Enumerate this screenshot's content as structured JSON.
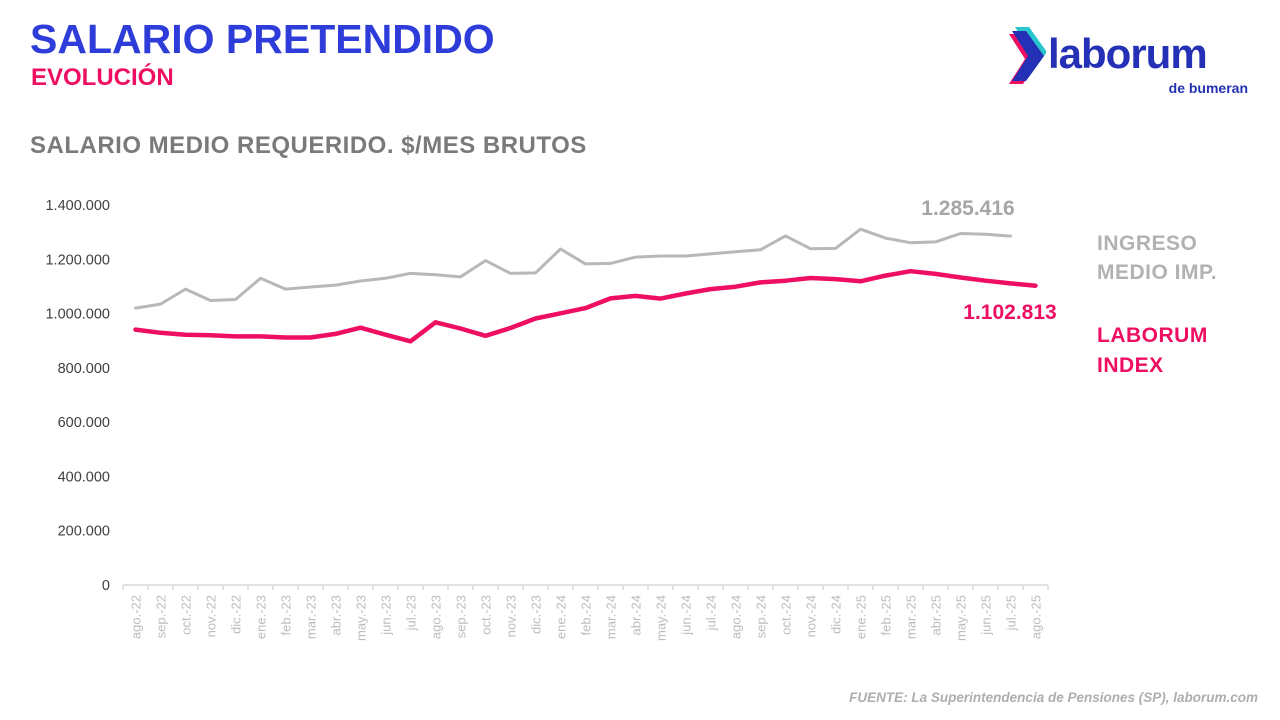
{
  "header": {
    "title": "SALARIO PRETENDIDO",
    "subtitle": "EVOLUCIÓN"
  },
  "logo": {
    "name": "laborum",
    "tagline": "de bumeran"
  },
  "chart": {
    "title": "SALARIO MEDIO REQUERIDO. $/MES BRUTOS"
  },
  "legend": {
    "series1": "INGRESO MEDIO IMP.",
    "series2": "LABORUM INDEX"
  },
  "annotations": {
    "gray_value": "1.285.416",
    "pink_value": "1.102.813"
  },
  "footer": "FUENTE: La Superintendencia de Pensiones (SP), laborum.com",
  "colors": {
    "title_blue": "#2e3cd9",
    "accent_pink": "#ee0f63",
    "line_gray": "#b8b8b8",
    "logo_navy": "#2430b5",
    "logo_teal": "#29c5cd"
  },
  "chart_data": {
    "type": "line",
    "title": "SALARIO MEDIO REQUERIDO. $/MES BRUTOS",
    "xlabel": "",
    "ylabel": "$/mes brutos",
    "ylim": [
      0,
      1400000
    ],
    "grid": false,
    "legend_position": "right",
    "categories": [
      "ago.-22",
      "sep.-22",
      "oct.-22",
      "nov.-22",
      "dic.-22",
      "ene.-23",
      "feb.-23",
      "mar.-23",
      "abr.-23",
      "may.-23",
      "jun.-23",
      "jul.-23",
      "ago.-23",
      "sep.-23",
      "oct.-23",
      "nov.-23",
      "dic.-23",
      "ene.-24",
      "feb.-24",
      "mar.-24",
      "abr.-24",
      "may.-24",
      "jun.-24",
      "jul.-24",
      "ago.-24",
      "sep.-24",
      "oct.-24",
      "nov.-24",
      "dic.-24",
      "ene.-25",
      "feb.-25",
      "mar.-25",
      "abr.-25",
      "may.-25",
      "jun.-25",
      "jul.-25",
      "ago.-25"
    ],
    "yticks": [
      {
        "v": 0,
        "label": "0"
      },
      {
        "v": 200000,
        "label": "200.000"
      },
      {
        "v": 400000,
        "label": "400.000"
      },
      {
        "v": 600000,
        "label": "600.000"
      },
      {
        "v": 800000,
        "label": "800.000"
      },
      {
        "v": 1000000,
        "label": "1.000.000"
      },
      {
        "v": 1200000,
        "label": "1.200.000"
      },
      {
        "v": 1400000,
        "label": "1.400.000"
      }
    ],
    "series": [
      {
        "key": "ingreso-medio-imp",
        "name": "INGRESO MEDIO IMP.",
        "color": "#b8b8b8",
        "width": 3,
        "last_label": "1.285.416",
        "values": [
          1020000,
          1035000,
          1090000,
          1048000,
          1052000,
          1130000,
          1090000,
          1098000,
          1105000,
          1120000,
          1130000,
          1148000,
          1143000,
          1135000,
          1195000,
          1148000,
          1150000,
          1238000,
          1183000,
          1185000,
          1208000,
          1212000,
          1212000,
          1220000,
          1228000,
          1235000,
          1286000,
          1239000,
          1240000,
          1311000,
          1278000,
          1261000,
          1264000,
          1295000,
          1292000,
          1285416,
          null
        ]
      },
      {
        "key": "laborum-index",
        "name": "LABORUM INDEX",
        "color": "#ee0f63",
        "width": 4.5,
        "last_label": "1.102.813",
        "values": [
          941000,
          929000,
          922000,
          920000,
          916000,
          916000,
          912000,
          912000,
          925000,
          948000,
          922000,
          898000,
          968000,
          945000,
          918000,
          947000,
          982000,
          1001000,
          1020000,
          1056000,
          1065000,
          1055000,
          1074000,
          1090000,
          1099000,
          1115000,
          1121000,
          1131000,
          1127000,
          1119000,
          1140000,
          1156000,
          1146000,
          1133000,
          1121000,
          1111000,
          1102813
        ]
      }
    ]
  }
}
